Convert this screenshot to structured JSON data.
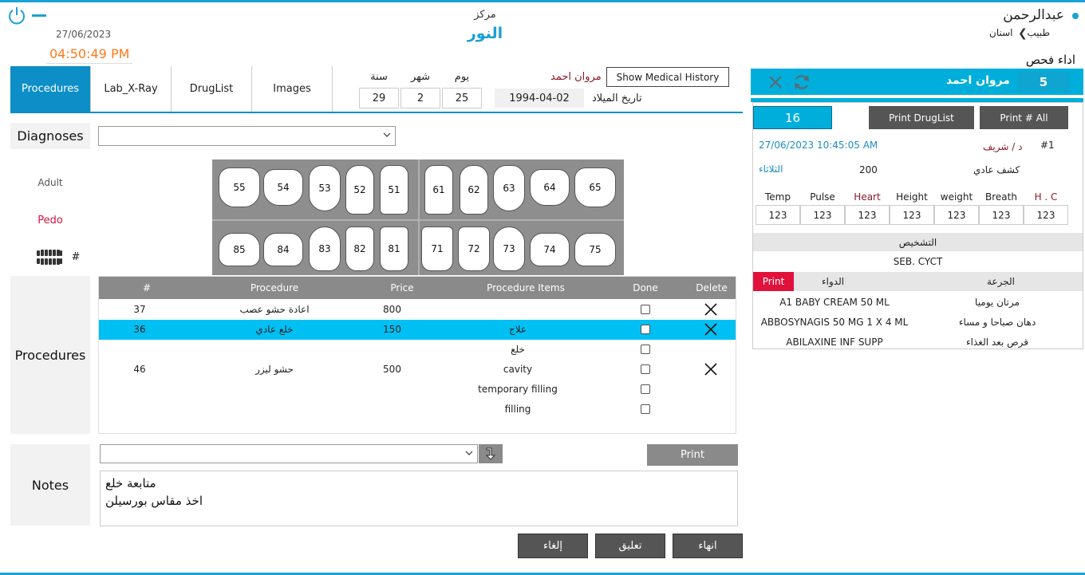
{
  "header": {
    "date": "27/06/2023",
    "time": "04:50:49 PM",
    "center_label": "مركز",
    "center_name": "النور",
    "user_name": "عبدالرحمن",
    "user_role": "طبيب",
    "user_specialty": "اسنان",
    "page_title": "اداء فحص"
  },
  "tabs": [
    "Procedures",
    "Lab_X-Ray",
    "DrugList",
    "Images"
  ],
  "patient_top": {
    "day_label": "يوم",
    "month_label": "شهر",
    "year_label": "سنة",
    "day": "25",
    "month": "2",
    "year": "29",
    "name": "مروان احمد",
    "birth_date": "1994-04-02",
    "birth_label": "تاريخ الميلاد",
    "history_button": "Show Medical History"
  },
  "left": {
    "diagnoses_label": "Diagnoses",
    "adult": "Adult",
    "pedo": "Pedo",
    "hash": "#",
    "procedures_label": "Procedures",
    "notes_label": "Notes"
  },
  "teeth": {
    "upper_right": [
      "55",
      "54",
      "53",
      "52",
      "51"
    ],
    "upper_left": [
      "61",
      "62",
      "63",
      "64",
      "65"
    ],
    "lower_right": [
      "85",
      "84",
      "83",
      "82",
      "81"
    ],
    "lower_left": [
      "71",
      "72",
      "73",
      "74",
      "75"
    ]
  },
  "procedures_table": {
    "headers": [
      "#",
      "Procedure",
      "Price",
      "Procedure Items",
      "Done",
      "Delete"
    ],
    "rows": [
      {
        "num": "37",
        "procedure": "اعادة حشو عصب",
        "price": "800",
        "item": "",
        "selected": false,
        "delete": true
      },
      {
        "num": "36",
        "procedure": "خلع عادي",
        "price": "150",
        "item": "علاج",
        "selected": true,
        "delete": true
      },
      {
        "num": "",
        "procedure": "",
        "price": "",
        "item": "خلع",
        "selected": false,
        "delete": false
      },
      {
        "num": "46",
        "procedure": "حشو ليزر",
        "price": "500",
        "item": "cavity",
        "selected": false,
        "delete": true
      },
      {
        "num": "",
        "procedure": "",
        "price": "",
        "item": "temporary filling",
        "selected": false,
        "delete": false
      },
      {
        "num": "",
        "procedure": "",
        "price": "",
        "item": "filling",
        "selected": false,
        "delete": false
      }
    ]
  },
  "notes": {
    "print_label": "Print",
    "line1": "متابعة خلع",
    "line2": "اخذ مقاس بورسيلن"
  },
  "actions": {
    "finish": "انهاء",
    "suspend": "تعليق",
    "cancel": "إلغاء"
  },
  "right_panel": {
    "patient_id": "5",
    "patient_name": "مروان احمد",
    "visit_no": "16",
    "print_druglist": "Print DrugList",
    "print_all": "Print # All",
    "visit_datetime": "27/06/2023 10:45:05 AM",
    "doctor": "د / شريف",
    "visit_index": "#1",
    "day_name": "الثلاثاء",
    "fee": "200",
    "visit_type": "كشف عادي",
    "vitals": [
      {
        "label": "Temp",
        "value": "123",
        "color": "#222"
      },
      {
        "label": "Pulse",
        "value": "123",
        "color": "#222"
      },
      {
        "label": "Heart",
        "value": "123",
        "color": "#8b1a2b"
      },
      {
        "label": "Height",
        "value": "123",
        "color": "#222"
      },
      {
        "label": "weight",
        "value": "123",
        "color": "#222"
      },
      {
        "label": "Breath",
        "value": "123",
        "color": "#222"
      },
      {
        "label": "H . C",
        "value": "123",
        "color": "#8b1a2b"
      }
    ],
    "diagnosis_label": "التشخيص",
    "diagnosis_value": "SEB. CYCT",
    "drug_print": "Print",
    "drug_col": "الدواء",
    "dose_col": "الجرعة",
    "drugs": [
      {
        "drug": "A1 BABY CREAM 50 ML",
        "dose": "مرتان يوميا"
      },
      {
        "drug": "ABBOSYNAGIS 50 MG 1 X 4  ML",
        "dose": "دهان صباحا و مساء"
      },
      {
        "drug": "ABILAXINE INF SUPP",
        "dose": "قرص بعد الغذاء"
      }
    ]
  }
}
